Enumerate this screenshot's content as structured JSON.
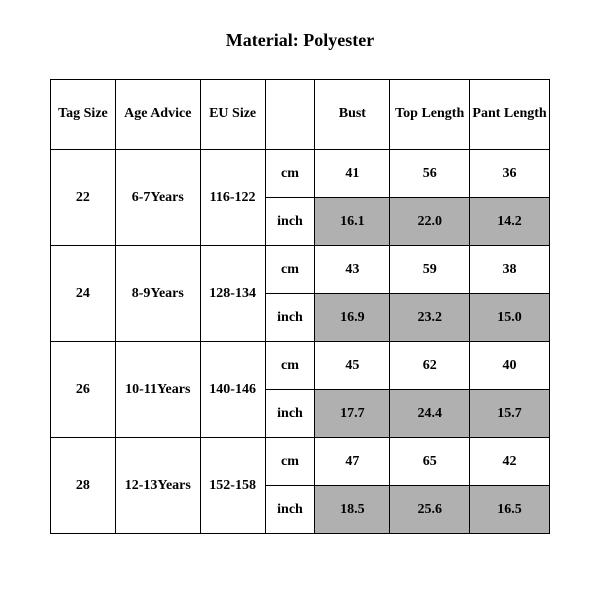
{
  "title": "Material: Polyester",
  "columns": {
    "tag_size": "Tag Size",
    "age_advice": "Age Advice",
    "eu_size": "EU Size",
    "unit": "",
    "bust": "Bust",
    "top_length": "Top Length",
    "pant_length": "Pant Length"
  },
  "units": {
    "cm": "cm",
    "inch": "inch"
  },
  "rows": [
    {
      "tag_size": "22",
      "age_advice": "6-7Years",
      "eu_size": "116-122",
      "cm": {
        "bust": "41",
        "top_length": "56",
        "pant_length": "36"
      },
      "inch": {
        "bust": "16.1",
        "top_length": "22.0",
        "pant_length": "14.2"
      }
    },
    {
      "tag_size": "24",
      "age_advice": "8-9Years",
      "eu_size": "128-134",
      "cm": {
        "bust": "43",
        "top_length": "59",
        "pant_length": "38"
      },
      "inch": {
        "bust": "16.9",
        "top_length": "23.2",
        "pant_length": "15.0"
      }
    },
    {
      "tag_size": "26",
      "age_advice": "10-11Years",
      "eu_size": "140-146",
      "cm": {
        "bust": "45",
        "top_length": "62",
        "pant_length": "40"
      },
      "inch": {
        "bust": "17.7",
        "top_length": "24.4",
        "pant_length": "15.7"
      }
    },
    {
      "tag_size": "28",
      "age_advice": "12-13Years",
      "eu_size": "152-158",
      "cm": {
        "bust": "47",
        "top_length": "65",
        "pant_length": "42"
      },
      "inch": {
        "bust": "18.5",
        "top_length": "25.6",
        "pant_length": "16.5"
      }
    }
  ],
  "style": {
    "shade_color": "#b0b0b0",
    "border_color": "#000000",
    "background_color": "#ffffff",
    "font_family": "Times New Roman",
    "title_fontsize": 18,
    "cell_fontsize": 14
  }
}
